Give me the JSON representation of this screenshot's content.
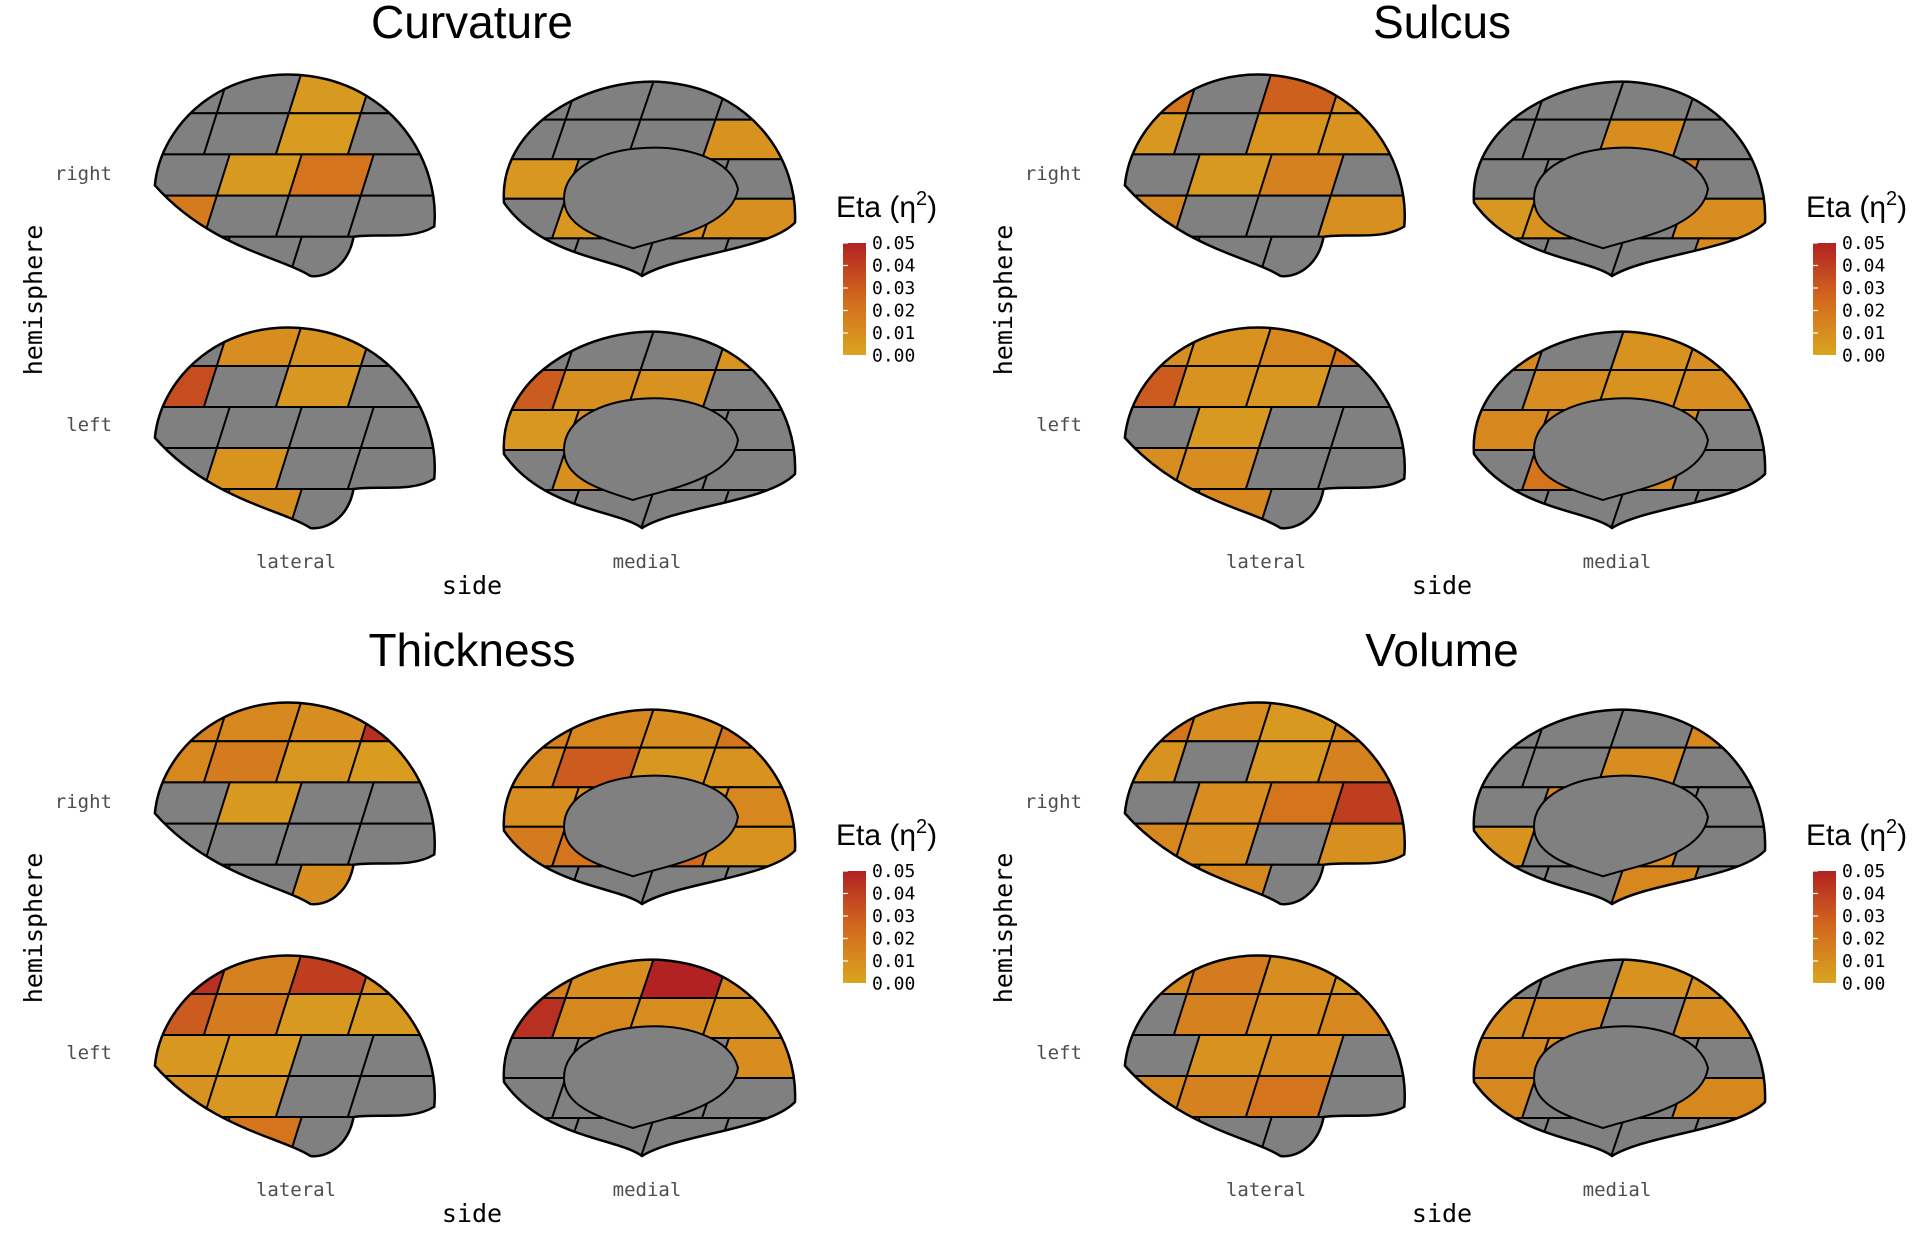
{
  "colors": {
    "background": "#ffffff",
    "no_data": "#808080",
    "outline": "#000000",
    "scale_low": "#DAA520",
    "scale_mid": "#D2691E",
    "scale_high": "#B22222"
  },
  "chart_data": [
    {
      "type": "heatmap",
      "title": "Curvature",
      "xlabel": "side",
      "ylabel": "hemisphere",
      "x_ticks": [
        "lateral",
        "medial"
      ],
      "y_ticks": [
        "right",
        "left"
      ],
      "legend": {
        "title": "Eta (η",
        "superscript": "2",
        "title_end": ")",
        "ticks": [
          "0.05",
          "0.04",
          "0.03",
          "0.02",
          "0.01",
          "0.00"
        ],
        "range": [
          0,
          0.05
        ],
        "placement": "right"
      },
      "views": [
        {
          "hemisphere": "right",
          "side": "lateral",
          "values": [
            null,
            null,
            0.005,
            null,
            null,
            null,
            0.004,
            null,
            null,
            0.005,
            0.02,
            null,
            0.018,
            null,
            null,
            null,
            null,
            null,
            null,
            null
          ]
        },
        {
          "hemisphere": "right",
          "side": "medial",
          "values": [
            null,
            null,
            null,
            null,
            null,
            null,
            null,
            0.008,
            0.006,
            null,
            null,
            null,
            null,
            0.006,
            0.01,
            0.009,
            null,
            null,
            null,
            null
          ]
        },
        {
          "hemisphere": "left",
          "side": "lateral",
          "values": [
            null,
            0.01,
            0.008,
            null,
            0.035,
            null,
            0.006,
            null,
            null,
            null,
            null,
            null,
            null,
            0.007,
            null,
            null,
            null,
            0.009,
            null,
            null
          ]
        },
        {
          "hemisphere": "left",
          "side": "medial",
          "values": [
            null,
            null,
            null,
            0.007,
            0.03,
            0.009,
            0.008,
            null,
            0.006,
            0.01,
            null,
            null,
            null,
            0.009,
            null,
            null,
            null,
            null,
            null,
            null
          ]
        }
      ]
    },
    {
      "type": "heatmap",
      "title": "Sulcus",
      "xlabel": "side",
      "ylabel": "hemisphere",
      "x_ticks": [
        "lateral",
        "medial"
      ],
      "y_ticks": [
        "right",
        "left"
      ],
      "legend": {
        "title": "Eta (η",
        "superscript": "2",
        "title_end": ")",
        "ticks": [
          "0.05",
          "0.04",
          "0.03",
          "0.02",
          "0.01",
          "0.00"
        ],
        "range": [
          0,
          0.05
        ],
        "placement": "right"
      },
      "views": [
        {
          "hemisphere": "right",
          "side": "lateral",
          "values": [
            0.02,
            null,
            0.028,
            0.01,
            0.006,
            null,
            0.007,
            0.008,
            null,
            0.005,
            0.015,
            null,
            0.012,
            null,
            null,
            0.009,
            null,
            null,
            null,
            0.006
          ]
        },
        {
          "hemisphere": "right",
          "side": "medial",
          "values": [
            null,
            null,
            null,
            null,
            null,
            null,
            0.01,
            null,
            null,
            null,
            0.018,
            null,
            0.006,
            0.008,
            null,
            0.01,
            null,
            null,
            null,
            0.012
          ]
        },
        {
          "hemisphere": "left",
          "side": "lateral",
          "values": [
            0.01,
            0.008,
            0.012,
            0.02,
            0.03,
            0.008,
            0.006,
            null,
            null,
            0.005,
            null,
            null,
            0.01,
            0.01,
            null,
            null,
            null,
            0.012,
            null,
            null
          ]
        },
        {
          "hemisphere": "left",
          "side": "medial",
          "values": [
            0.012,
            null,
            0.008,
            0.01,
            null,
            0.01,
            0.008,
            0.01,
            0.012,
            0.015,
            0.01,
            null,
            null,
            0.02,
            0.012,
            null,
            null,
            null,
            null,
            null
          ]
        }
      ]
    },
    {
      "type": "heatmap",
      "title": "Thickness",
      "xlabel": "side",
      "ylabel": "hemisphere",
      "x_ticks": [
        "lateral",
        "medial"
      ],
      "y_ticks": [
        "right",
        "left"
      ],
      "legend": {
        "title": "Eta (η",
        "superscript": "2",
        "title_end": ")",
        "ticks": [
          "0.05",
          "0.04",
          "0.03",
          "0.02",
          "0.01",
          "0.00"
        ],
        "range": [
          0,
          0.05
        ],
        "placement": "right"
      },
      "views": [
        {
          "hemisphere": "right",
          "side": "lateral",
          "values": [
            0.015,
            0.012,
            0.01,
            0.045,
            0.012,
            0.018,
            0.006,
            0.004,
            null,
            0.005,
            null,
            null,
            null,
            null,
            null,
            null,
            null,
            null,
            0.01,
            null
          ]
        },
        {
          "hemisphere": "right",
          "side": "medial",
          "values": [
            0.015,
            0.012,
            0.01,
            0.02,
            0.012,
            0.03,
            0.006,
            0.008,
            0.01,
            0.008,
            0.004,
            0.012,
            0.018,
            0.02,
            0.025,
            0.008,
            null,
            null,
            null,
            null
          ]
        },
        {
          "hemisphere": "left",
          "side": "lateral",
          "values": [
            0.045,
            0.015,
            0.04,
            0.01,
            0.03,
            0.018,
            0.005,
            0.005,
            0.006,
            0.004,
            null,
            null,
            0.008,
            0.006,
            null,
            null,
            0.01,
            0.02,
            null,
            null
          ]
        },
        {
          "hemisphere": "left",
          "side": "medial",
          "values": [
            0.015,
            0.01,
            0.05,
            0.012,
            0.045,
            0.012,
            0.01,
            0.008,
            null,
            null,
            null,
            0.01,
            null,
            null,
            null,
            null,
            null,
            null,
            null,
            null
          ]
        }
      ]
    },
    {
      "type": "heatmap",
      "title": "Volume",
      "xlabel": "side",
      "ylabel": "hemisphere",
      "x_ticks": [
        "lateral",
        "medial"
      ],
      "y_ticks": [
        "right",
        "left"
      ],
      "legend": {
        "title": "Eta (η",
        "superscript": "2",
        "title_end": ")",
        "ticks": [
          "0.05",
          "0.04",
          "0.03",
          "0.02",
          "0.01",
          "0.00"
        ],
        "range": [
          0,
          0.05
        ],
        "placement": "right"
      },
      "views": [
        {
          "hemisphere": "right",
          "side": "lateral",
          "values": [
            0.02,
            0.01,
            0.005,
            0.012,
            0.008,
            null,
            0.006,
            0.015,
            null,
            0.01,
            0.02,
            0.04,
            0.012,
            0.01,
            null,
            0.009,
            null,
            0.012,
            null,
            0.01
          ]
        },
        {
          "hemisphere": "right",
          "side": "medial",
          "values": [
            null,
            null,
            null,
            0.012,
            null,
            null,
            0.01,
            null,
            null,
            0.012,
            null,
            null,
            0.008,
            null,
            0.01,
            null,
            null,
            null,
            0.012,
            null
          ]
        },
        {
          "hemisphere": "left",
          "side": "lateral",
          "values": [
            0.012,
            0.018,
            0.01,
            0.006,
            null,
            0.015,
            0.01,
            0.012,
            null,
            0.008,
            0.01,
            null,
            0.012,
            0.015,
            0.02,
            null,
            0.01,
            null,
            null,
            0.009
          ]
        },
        {
          "hemisphere": "left",
          "side": "medial",
          "values": [
            null,
            null,
            0.008,
            0.008,
            0.01,
            0.012,
            null,
            0.01,
            0.012,
            0.01,
            null,
            null,
            0.012,
            null,
            null,
            0.012,
            null,
            null,
            null,
            null
          ]
        }
      ]
    }
  ]
}
